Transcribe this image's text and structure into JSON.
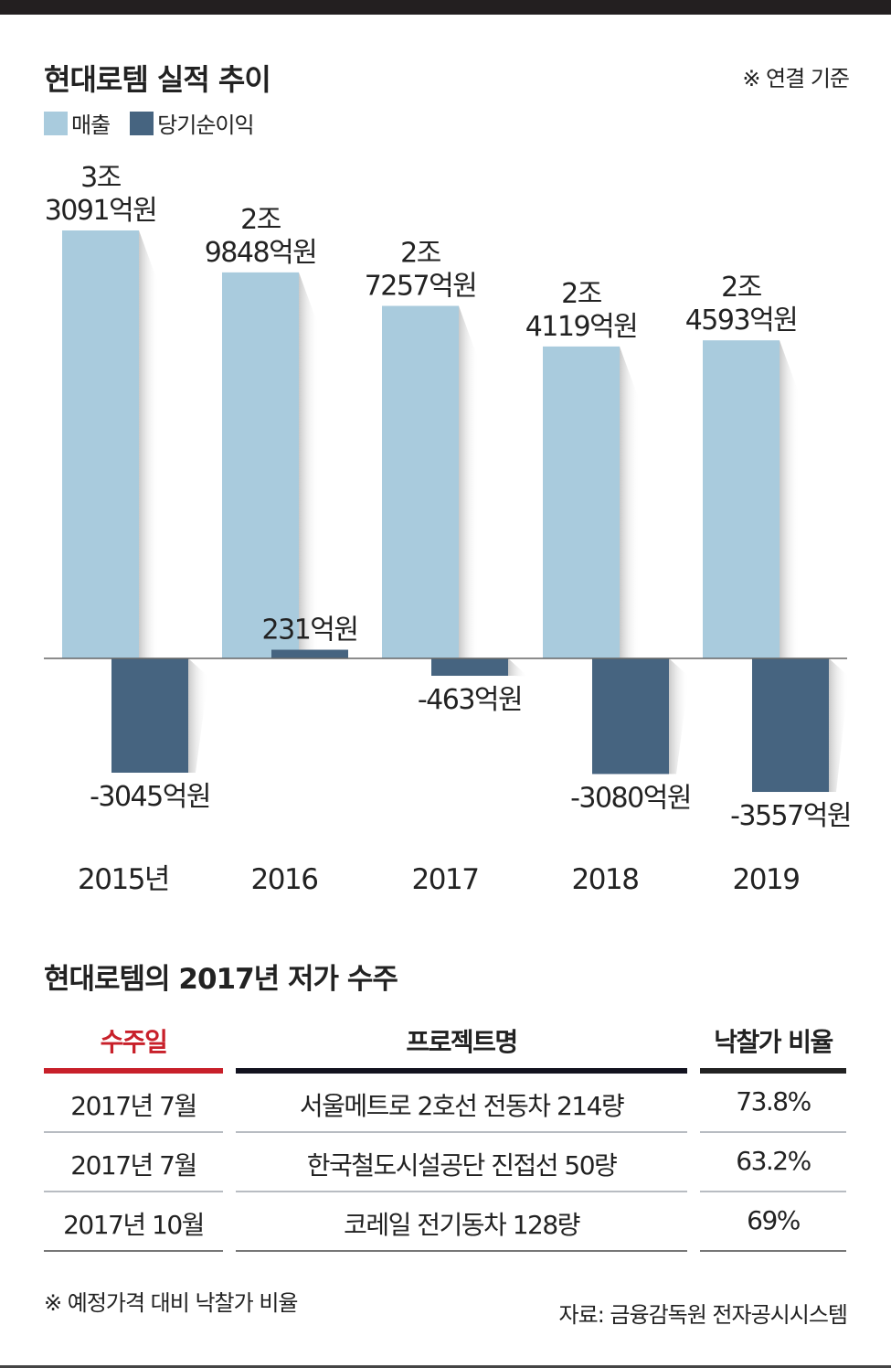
{
  "chart_data": {
    "type": "bar",
    "title": "현대로템 실적 추이",
    "note": "※ 연결 기준",
    "categories": [
      "2015년",
      "2016",
      "2017",
      "2018",
      "2019"
    ],
    "series": [
      {
        "name": "매출",
        "color": "#a9cbdd",
        "values": [
          33091,
          29848,
          27257,
          24119,
          24593
        ],
        "labels": [
          [
            "3조",
            "3091억원"
          ],
          [
            "2조",
            "9848억원"
          ],
          [
            "2조",
            "7257억원"
          ],
          [
            "2조",
            "4119억원"
          ],
          [
            "2조",
            "4593억원"
          ]
        ]
      },
      {
        "name": "당기순이익",
        "color": "#466480",
        "values": [
          -3045,
          231,
          -463,
          -3080,
          -3557
        ],
        "labels": [
          "-3045억원",
          "231억원",
          "-463억원",
          "-3080억원",
          "-3557억원"
        ]
      }
    ],
    "unit": "억원"
  },
  "table": {
    "title": "현대로템의 2017년 저가 수주",
    "headers": [
      "수주일",
      "프로젝트명",
      "낙찰가 비율"
    ],
    "header_colors": [
      "#c8202a",
      "#12121f",
      "#222222"
    ],
    "rows": [
      [
        "2017년 7월",
        "서울메트로 2호선 전동차 214량",
        "73.8%"
      ],
      [
        "2017년 7월",
        "한국철도시설공단 진접선 50량",
        "63.2%"
      ],
      [
        "2017년 10월",
        "코레일 전기동차 128량",
        "69%"
      ]
    ]
  },
  "footnote": "※ 예정가격 대비 낙찰가 비율",
  "source": "자료: 금융감독원 전자공시시스템"
}
